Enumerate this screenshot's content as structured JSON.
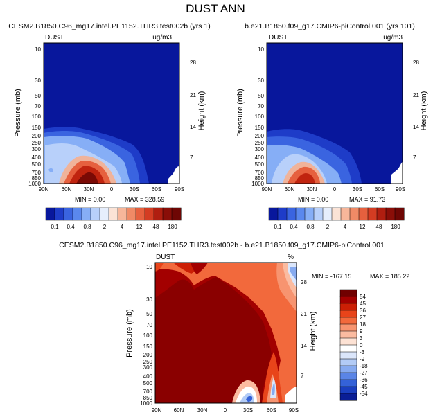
{
  "figure_title": "DUST ANN",
  "chart_data": [
    {
      "type": "heatmap",
      "title": "CESM2.B1850.C96_mg17.intel.PE1152.THR3.test002b (yrs 1)",
      "left_label": "DUST",
      "right_label": "ug/m3",
      "xlabel": "",
      "ylabel": "Pressure (mb)",
      "ylabel_right": "Height (km)",
      "x_ticks": [
        "90N",
        "60N",
        "30N",
        "0",
        "30S",
        "60S",
        "90S"
      ],
      "y_ticks": [
        "10",
        "30",
        "50",
        "70",
        "100",
        "150",
        "200",
        "250",
        "300",
        "400",
        "500",
        "700",
        "850",
        "1000"
      ],
      "y_ticks_right": [
        "28",
        "21",
        "14",
        "7"
      ],
      "min_label": "MIN = 0.00",
      "max_label": "MAX = 328.59",
      "colorbar_labels": [
        "0.1",
        "0.4",
        "0.8",
        "2",
        "4",
        "12",
        "48",
        "180"
      ]
    },
    {
      "type": "heatmap",
      "title": "b.e21.B1850.f09_g17.CMIP6-piControl.001 (yrs 101)",
      "left_label": "DUST",
      "right_label": "ug/m3",
      "xlabel": "",
      "ylabel": "Pressure (mb)",
      "ylabel_right": "Height (km)",
      "x_ticks": [
        "90N",
        "60N",
        "30N",
        "0",
        "30S",
        "60S",
        "90S"
      ],
      "y_ticks": [
        "10",
        "30",
        "50",
        "70",
        "100",
        "150",
        "200",
        "250",
        "300",
        "400",
        "500",
        "700",
        "850",
        "1000"
      ],
      "y_ticks_right": [
        "28",
        "21",
        "14",
        "7"
      ],
      "min_label": "MIN = 0.00",
      "max_label": "MAX = 91.73",
      "colorbar_labels": [
        "0.1",
        "0.4",
        "0.8",
        "2",
        "4",
        "12",
        "48",
        "180"
      ]
    },
    {
      "type": "heatmap",
      "title": "CESM2.B1850.C96_mg17.intel.PE1152.THR3.test002b - b.e21.B1850.f09_g17.CMIP6-piControl.001",
      "left_label": "DUST",
      "right_label": "%",
      "xlabel": "",
      "ylabel": "Pressure (mb)",
      "ylabel_right": "Height (km)",
      "x_ticks": [
        "90N",
        "60N",
        "30N",
        "0",
        "30S",
        "60S",
        "90S"
      ],
      "y_ticks": [
        "10",
        "30",
        "50",
        "70",
        "100",
        "150",
        "200",
        "250",
        "300",
        "400",
        "500",
        "700",
        "850",
        "1000"
      ],
      "y_ticks_right": [
        "28",
        "21",
        "14",
        "7"
      ],
      "min_label": "MIN = -167.15",
      "max_label": "MAX = 185.22",
      "colorbar_labels": [
        "54",
        "45",
        "36",
        "27",
        "18",
        "9",
        "3",
        "0",
        "-3",
        "-9",
        "-18",
        "-27",
        "-36",
        "-45",
        "-54"
      ]
    }
  ],
  "colors": {
    "abs_scale": [
      "#08179c",
      "#1e3cc8",
      "#3a64e0",
      "#5a88ee",
      "#86aef6",
      "#b8d0fa",
      "#e6eefc",
      "#fbe3d6",
      "#f7b69a",
      "#f08a66",
      "#e6603e",
      "#d43c22",
      "#b01e10",
      "#8a0e08",
      "#6e0604"
    ],
    "diff_scale": [
      "#700000",
      "#a30000",
      "#cc1f05",
      "#e8441a",
      "#f2693c",
      "#f79470",
      "#fbbba0",
      "#fde2d4",
      "#ffffff",
      "#dbe6fb",
      "#b2cbf6",
      "#86aaf0",
      "#5a85e6",
      "#3462d8",
      "#1a3fc0",
      "#0a1e96"
    ]
  }
}
